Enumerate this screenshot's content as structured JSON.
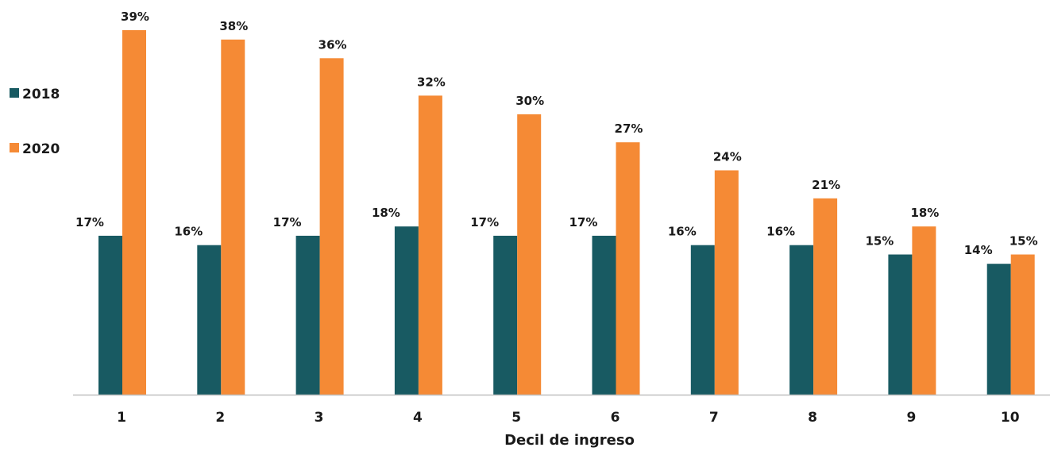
{
  "chart_data": {
    "type": "bar",
    "title": "",
    "xlabel": "Decil de ingreso",
    "ylabel": "",
    "categories": [
      "1",
      "2",
      "3",
      "4",
      "5",
      "6",
      "7",
      "8",
      "9",
      "10"
    ],
    "series": [
      {
        "name": "2018",
        "color": "#185a62",
        "values": [
          17,
          16,
          17,
          18,
          17,
          17,
          16,
          16,
          15,
          14
        ],
        "labels": [
          "17%",
          "16%",
          "17%",
          "18%",
          "17%",
          "17%",
          "16%",
          "16%",
          "15%",
          "14%"
        ]
      },
      {
        "name": "2020",
        "color": "#f58a35",
        "values": [
          39,
          38,
          36,
          32,
          30,
          27,
          24,
          21,
          18,
          15
        ],
        "labels": [
          "39%",
          "38%",
          "36%",
          "32%",
          "30%",
          "27%",
          "24%",
          "21%",
          "18%",
          "15%"
        ]
      }
    ],
    "ylim": [
      0,
      40
    ],
    "grid": false,
    "legend_position": "top-left",
    "axis_color": "#bfbfbf"
  }
}
